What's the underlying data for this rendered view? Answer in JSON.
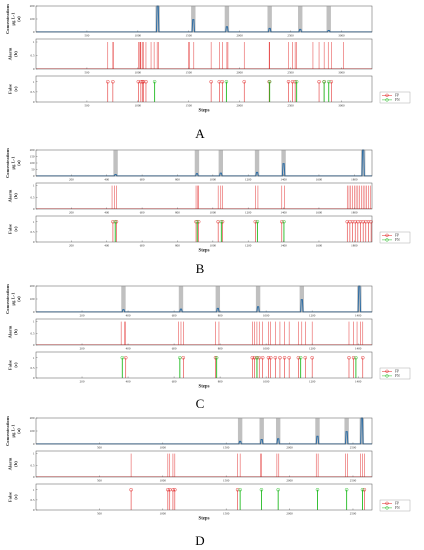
{
  "chart_data": [
    {
      "type": "composite",
      "panel_label": "A",
      "xmax": 3300,
      "xticks": [
        500,
        1000,
        1500,
        2000,
        2500,
        3000
      ],
      "xlabel": "Steps",
      "conc": {
        "ylabel_main": "Concentrations",
        "ylabel_sub": "µg L-1",
        "ylabel_tag": "(a)",
        "ylim": [
          0,
          200
        ],
        "yticks": [
          0,
          100,
          200
        ],
        "peaks": [
          {
            "x": 1195,
            "h": 200
          },
          {
            "x": 1545,
            "h": 95
          },
          {
            "x": 1875,
            "h": 40
          },
          {
            "x": 2295,
            "h": 28
          },
          {
            "x": 2595,
            "h": 20
          },
          {
            "x": 2875,
            "h": 12
          }
        ]
      },
      "alarm": {
        "ylabel_main": "Alarm",
        "ylabel_tag": "(b)",
        "yticks": [
          0,
          0.5,
          1
        ],
        "x": [
          705,
          755,
          760,
          1005,
          1020,
          1025,
          1030,
          1045,
          1055,
          1080,
          1130,
          1160,
          1190,
          1205,
          1500,
          1510,
          1550,
          1720,
          1800,
          1830,
          1875,
          1885,
          2045,
          2290,
          2295,
          2480,
          2520,
          2545,
          2560,
          2720,
          2780,
          2830,
          2870,
          2900,
          3020
        ]
      },
      "false": {
        "ylabel_main": "False",
        "ylabel_tag": "(c)",
        "yticks": [
          0,
          0.5,
          1
        ],
        "fp": [
          705,
          755,
          1005,
          1030,
          1045,
          1055,
          1080,
          1720,
          1800,
          1830,
          2045,
          2290,
          2480,
          2520,
          2545,
          2780,
          2830,
          2900
        ],
        "fn": [
          1165,
          1870,
          2295,
          2560,
          2830,
          2875
        ]
      },
      "legend": [
        "FP",
        "FN"
      ]
    },
    {
      "type": "composite",
      "panel_label": "B",
      "xmax": 1900,
      "xticks": [
        200,
        400,
        600,
        800,
        1000,
        1200,
        1400,
        1600,
        1800
      ],
      "xlabel": "Steps",
      "conc": {
        "ylabel_main": "Concentrations",
        "ylabel_sub": "µg L-1",
        "ylabel_tag": "(a)",
        "ylim": [
          0,
          200
        ],
        "yticks": [
          0,
          50,
          100,
          150,
          200
        ],
        "peaks": [
          {
            "x": 450,
            "h": 12
          },
          {
            "x": 910,
            "h": 18
          },
          {
            "x": 1045,
            "h": 22
          },
          {
            "x": 1250,
            "h": 28
          },
          {
            "x": 1400,
            "h": 95
          },
          {
            "x": 1850,
            "h": 200
          }
        ]
      },
      "alarm": {
        "ylabel_main": "Alarm",
        "ylabel_tag": "(b)",
        "yticks": [
          0,
          0.5,
          1
        ],
        "x": [
          430,
          445,
          455,
          905,
          915,
          920,
          1030,
          1045,
          1055,
          1240,
          1255,
          1390,
          1405,
          1760,
          1770,
          1780,
          1790,
          1800,
          1810,
          1820,
          1830,
          1840,
          1850,
          1860,
          1870,
          1880,
          1890
        ]
      },
      "false": {
        "ylabel_main": "False",
        "ylabel_tag": "(c)",
        "yticks": [
          0,
          0.5,
          1
        ],
        "fp": [
          435,
          455,
          905,
          920,
          1030,
          1055,
          1240,
          1390,
          1760,
          1775,
          1790,
          1805,
          1820,
          1835,
          1850,
          1865,
          1880,
          1895
        ],
        "fn": [
          448,
          912,
          1048,
          1252,
          1402
        ]
      },
      "legend": [
        "FP",
        "FN"
      ]
    },
    {
      "type": "composite",
      "panel_label": "C",
      "xmax": 1460,
      "xticks": [
        200,
        400,
        600,
        800,
        1000,
        1200,
        1400
      ],
      "xlabel": "Steps",
      "conc": {
        "ylabel_main": "Concentrations",
        "ylabel_sub": "µg L-1",
        "ylabel_tag": "(a)",
        "ylim": [
          0,
          200
        ],
        "yticks": [
          0,
          100,
          200
        ],
        "peaks": [
          {
            "x": 380,
            "h": 18
          },
          {
            "x": 630,
            "h": 22
          },
          {
            "x": 790,
            "h": 28
          },
          {
            "x": 965,
            "h": 40
          },
          {
            "x": 1155,
            "h": 95
          },
          {
            "x": 1405,
            "h": 200
          }
        ]
      },
      "alarm": {
        "ylabel_main": "Alarm",
        "ylabel_tag": "(b)",
        "yticks": [
          0,
          0.5,
          1
        ],
        "x": [
          370,
          385,
          390,
          620,
          630,
          640,
          780,
          795,
          940,
          950,
          960,
          970,
          985,
          1010,
          1020,
          1040,
          1060,
          1080,
          1100,
          1140,
          1155,
          1170,
          1200,
          1360,
          1380,
          1395,
          1410,
          1420
        ]
      },
      "false": {
        "ylabel_main": "False",
        "ylabel_tag": "(c)",
        "yticks": [
          0,
          0.5,
          1
        ],
        "fp": [
          390,
          640,
          780,
          940,
          950,
          960,
          970,
          985,
          1010,
          1020,
          1040,
          1060,
          1080,
          1100,
          1140,
          1170,
          1200,
          1360,
          1380,
          1420
        ],
        "fn": [
          375,
          625,
          785,
          960,
          1150,
          1390
        ]
      },
      "legend": [
        "FP",
        "FN"
      ]
    },
    {
      "type": "composite",
      "panel_label": "D",
      "xmax": 2650,
      "xticks": [
        500,
        1000,
        1500,
        2000,
        2500
      ],
      "xlabel": "Steps",
      "conc": {
        "ylabel_main": "Concentrations",
        "ylabel_sub": "µg L-1",
        "ylabel_tag": "(a)",
        "ylim": [
          0,
          200
        ],
        "yticks": [
          0,
          100,
          200
        ],
        "peaks": [
          {
            "x": 1610,
            "h": 20
          },
          {
            "x": 1780,
            "h": 35
          },
          {
            "x": 1910,
            "h": 40
          },
          {
            "x": 2220,
            "h": 60
          },
          {
            "x": 2450,
            "h": 95
          },
          {
            "x": 2570,
            "h": 200
          }
        ]
      },
      "alarm": {
        "ylabel_main": "Alarm",
        "ylabel_tag": "(b)",
        "yticks": [
          0,
          0.5,
          1
        ],
        "x": [
          750,
          1040,
          1055,
          1080,
          1095,
          1590,
          1610,
          1770,
          1780,
          1900,
          1915,
          2210,
          2225,
          2440,
          2455,
          2560,
          2575,
          2590
        ]
      },
      "false": {
        "ylabel_main": "False",
        "ylabel_tag": "(c)",
        "yticks": [
          0,
          0.5,
          1
        ],
        "fp": [
          750,
          1040,
          1055,
          1080,
          1095,
          1590,
          2590
        ],
        "fn": [
          1610,
          1778,
          1910,
          2220,
          2450,
          2575
        ]
      },
      "legend": [
        "FP",
        "FN"
      ]
    }
  ]
}
